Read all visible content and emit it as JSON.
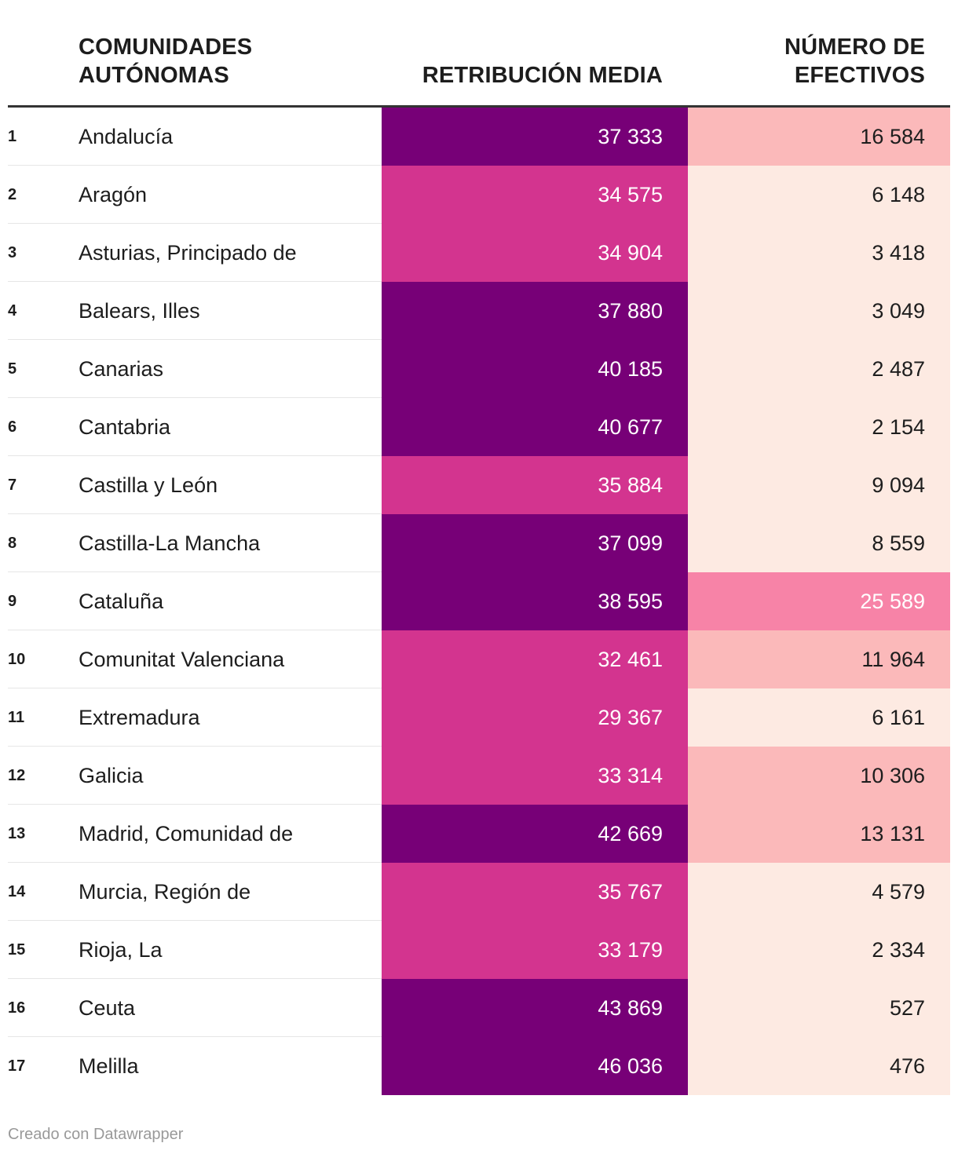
{
  "header": {
    "col_name": "COMUNIDADES AUTÓNOMAS",
    "col_retribucion": "RETRIBUCIÓN MEDIA",
    "col_efectivos": "NÚMERO DE EFECTIVOS"
  },
  "colors": {
    "retribucion_high": "#770077",
    "retribucion_mid": "#d3348f",
    "efectivos_low": "#fdeae2",
    "efectivos_mid": "#fbb9ba",
    "efectivos_high": "#f783a7",
    "text_dark": "#1d1d1d",
    "text_light": "#ffffff"
  },
  "chart_data": {
    "type": "table",
    "columns": [
      "",
      "COMUNIDADES AUTÓNOMAS",
      "RETRIBUCIÓN MEDIA",
      "NÚMERO DE EFECTIVOS"
    ],
    "rows": [
      {
        "rank": "1",
        "name": "Andalucía",
        "retribucion": "37 333",
        "efectivos": "16 584",
        "ret_level": "high",
        "ef_level": "mid"
      },
      {
        "rank": "2",
        "name": "Aragón",
        "retribucion": "34 575",
        "efectivos": "6 148",
        "ret_level": "mid",
        "ef_level": "low"
      },
      {
        "rank": "3",
        "name": "Asturias, Principado de",
        "retribucion": "34 904",
        "efectivos": "3 418",
        "ret_level": "mid",
        "ef_level": "low"
      },
      {
        "rank": "4",
        "name": "Balears, Illes",
        "retribucion": "37 880",
        "efectivos": "3 049",
        "ret_level": "high",
        "ef_level": "low"
      },
      {
        "rank": "5",
        "name": "Canarias",
        "retribucion": "40 185",
        "efectivos": "2 487",
        "ret_level": "high",
        "ef_level": "low"
      },
      {
        "rank": "6",
        "name": "Cantabria",
        "retribucion": "40 677",
        "efectivos": "2 154",
        "ret_level": "high",
        "ef_level": "low"
      },
      {
        "rank": "7",
        "name": "Castilla y León",
        "retribucion": "35 884",
        "efectivos": "9 094",
        "ret_level": "mid",
        "ef_level": "low"
      },
      {
        "rank": "8",
        "name": "Castilla-La Mancha",
        "retribucion": "37 099",
        "efectivos": "8 559",
        "ret_level": "high",
        "ef_level": "low"
      },
      {
        "rank": "9",
        "name": "Cataluña",
        "retribucion": "38 595",
        "efectivos": "25 589",
        "ret_level": "high",
        "ef_level": "high"
      },
      {
        "rank": "10",
        "name": "Comunitat Valenciana",
        "retribucion": "32 461",
        "efectivos": "11 964",
        "ret_level": "mid",
        "ef_level": "mid"
      },
      {
        "rank": "11",
        "name": "Extremadura",
        "retribucion": "29 367",
        "efectivos": "6 161",
        "ret_level": "mid",
        "ef_level": "low"
      },
      {
        "rank": "12",
        "name": "Galicia",
        "retribucion": "33 314",
        "efectivos": "10 306",
        "ret_level": "mid",
        "ef_level": "mid"
      },
      {
        "rank": "13",
        "name": "Madrid, Comunidad de",
        "retribucion": "42 669",
        "efectivos": "13 131",
        "ret_level": "high",
        "ef_level": "mid"
      },
      {
        "rank": "14",
        "name": "Murcia, Región de",
        "retribucion": "35 767",
        "efectivos": "4 579",
        "ret_level": "mid",
        "ef_level": "low"
      },
      {
        "rank": "15",
        "name": "Rioja, La",
        "retribucion": "33 179",
        "efectivos": "2 334",
        "ret_level": "mid",
        "ef_level": "low"
      },
      {
        "rank": "16",
        "name": "Ceuta",
        "retribucion": "43 869",
        "efectivos": "527",
        "ret_level": "high",
        "ef_level": "low"
      },
      {
        "rank": "17",
        "name": "Melilla",
        "retribucion": "46 036",
        "efectivos": "476",
        "ret_level": "high",
        "ef_level": "low"
      }
    ]
  },
  "footer": {
    "credit": "Creado con Datawrapper"
  }
}
